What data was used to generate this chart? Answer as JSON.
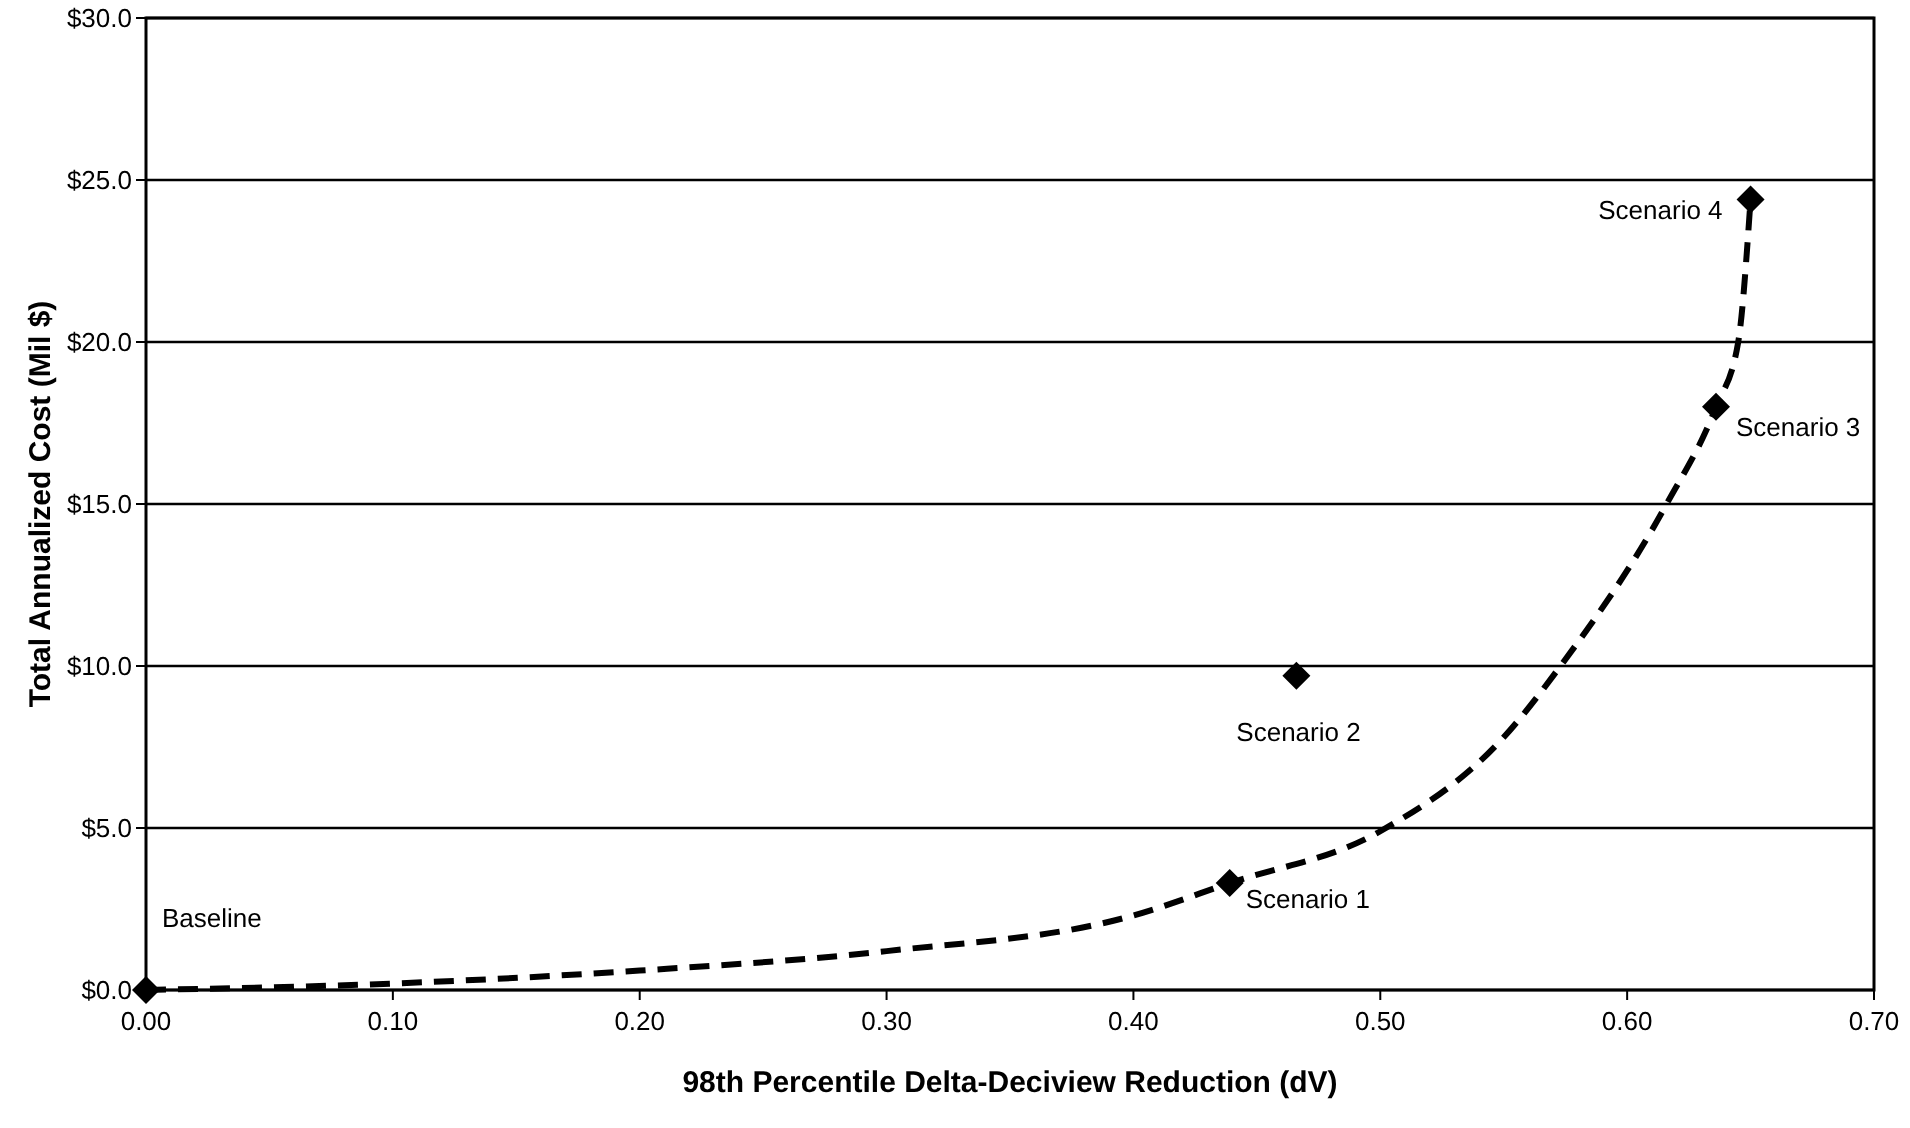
{
  "chart_data": {
    "type": "scatter",
    "xlabel": "98th Percentile Delta-Deciview Reduction (dV)",
    "ylabel": "Total Annualized Cost (Mil $)",
    "xlim": [
      0,
      0.7
    ],
    "xticks": [
      {
        "value": 0,
        "label": "0.00"
      },
      {
        "value": 0.1,
        "label": "0.10"
      },
      {
        "value": 0.2,
        "label": "0.20"
      },
      {
        "value": 0.3,
        "label": "0.30"
      },
      {
        "value": 0.4,
        "label": "0.40"
      },
      {
        "value": 0.5,
        "label": "0.50"
      },
      {
        "value": 0.6,
        "label": "0.60"
      },
      {
        "value": 0.7,
        "label": "0.70"
      }
    ],
    "ylim": [
      0,
      30
    ],
    "yticks": [
      {
        "value": 0,
        "label": "$0.0"
      },
      {
        "value": 5,
        "label": "$5.0"
      },
      {
        "value": 10,
        "label": "$10.0"
      },
      {
        "value": 15,
        "label": "$15.0"
      },
      {
        "value": 20,
        "label": "$20.0"
      },
      {
        "value": 25,
        "label": "$25.0"
      },
      {
        "value": 30,
        "label": "$30.0"
      }
    ],
    "grid": "y",
    "series": [
      {
        "type": "line",
        "color": "#000000",
        "line_style": "dashed",
        "marker": "none",
        "x": [
          0,
          0.1,
          0.2,
          0.3,
          0.4,
          0.439,
          0.5,
          0.55,
          0.573,
          0.616,
          0.636,
          0.645,
          0.65
        ],
        "values": [
          0,
          0.2,
          0.6,
          1.2,
          2.3,
          3.3,
          4.9,
          7.8,
          10,
          15,
          18,
          20,
          24.4
        ]
      },
      {
        "color": "#000000",
        "marker": "diamond",
        "x": [
          0,
          0.439,
          0.466,
          0.636,
          0.65
        ],
        "values": [
          0,
          3.3,
          9.7,
          18.0,
          24.4
        ]
      }
    ],
    "annotations": [
      {
        "text": "Baseline",
        "x": 0,
        "y": 0
      },
      {
        "text": "Scenario 1",
        "x": 0.439,
        "y": 3.3
      },
      {
        "text": "Scenario 2",
        "x": 0.466,
        "y": 9.7
      },
      {
        "text": "Scenario 3",
        "x": 0.636,
        "y": 18.0
      },
      {
        "text": "Scenario 4",
        "x": 0.65,
        "y": 24.4
      }
    ]
  }
}
